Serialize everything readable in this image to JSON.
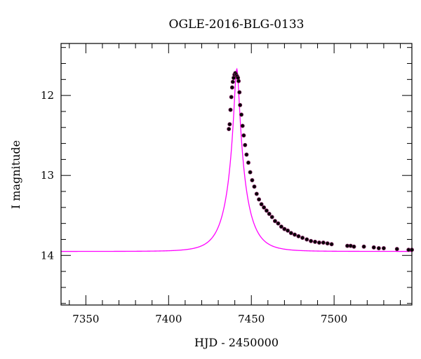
{
  "chart_data": {
    "type": "scatter",
    "title": "OGLE-2016-BLG-0133",
    "xlabel": "HJD - 2450000",
    "ylabel": "I magnitude",
    "xlim": [
      7335,
      7547
    ],
    "ylim": [
      14.62,
      11.35
    ],
    "y_inverted": true,
    "xticks_major": [
      7350,
      7400,
      7450,
      7500
    ],
    "xticks_minor_step": 10,
    "yticks_major": [
      12,
      13,
      14
    ],
    "yticks_minor_step": 0.2,
    "grid": false,
    "legend": "none",
    "model_color": "#ff00ff",
    "point_color": "#000000",
    "point_edge_color": "#7a1f5c",
    "model": {
      "type": "microlensing",
      "t0": 7441.2,
      "tE": 11.0,
      "u0": 0.123,
      "I_base": 13.95,
      "x_range": [
        7335,
        7547
      ]
    },
    "series": [
      {
        "x": [
          7436.4,
          7436.9,
          7437.4,
          7437.9,
          7438.4,
          7438.8,
          7439.3,
          7439.8,
          7440.3,
          7440.8,
          7441.4,
          7441.9,
          7442.3,
          7442.8,
          7443.2,
          7444.0,
          7444.7,
          7445.4,
          7446.2,
          7447.1,
          7448.2,
          7449.3,
          7450.5,
          7451.8,
          7453.2,
          7454.6,
          7456.1,
          7457.6,
          7459.2,
          7460.8,
          7462.5,
          7464.3,
          7466.2,
          7468.1,
          7470.0,
          7472.0,
          7474.0,
          7476.2,
          7478.5,
          7480.9,
          7483.5,
          7486.0,
          7488.5,
          7491.0,
          7493.5,
          7496.0,
          7498.5,
          7508.0,
          7510.0,
          7512.0,
          7518.0,
          7524.0,
          7527.0,
          7530.0,
          7538.0,
          7545.0,
          7547.0
        ],
        "y": [
          12.42,
          12.36,
          12.18,
          12.02,
          11.9,
          11.83,
          11.78,
          11.74,
          11.72,
          11.74,
          11.76,
          11.78,
          11.82,
          11.96,
          12.12,
          12.24,
          12.38,
          12.5,
          12.62,
          12.74,
          12.84,
          12.96,
          13.06,
          13.14,
          13.23,
          13.3,
          13.36,
          13.4,
          13.44,
          13.48,
          13.52,
          13.57,
          13.6,
          13.64,
          13.67,
          13.69,
          13.72,
          13.74,
          13.76,
          13.78,
          13.8,
          13.82,
          13.83,
          13.84,
          13.84,
          13.85,
          13.86,
          13.88,
          13.88,
          13.89,
          13.89,
          13.9,
          13.91,
          13.91,
          13.92,
          13.93,
          13.93
        ]
      }
    ]
  }
}
